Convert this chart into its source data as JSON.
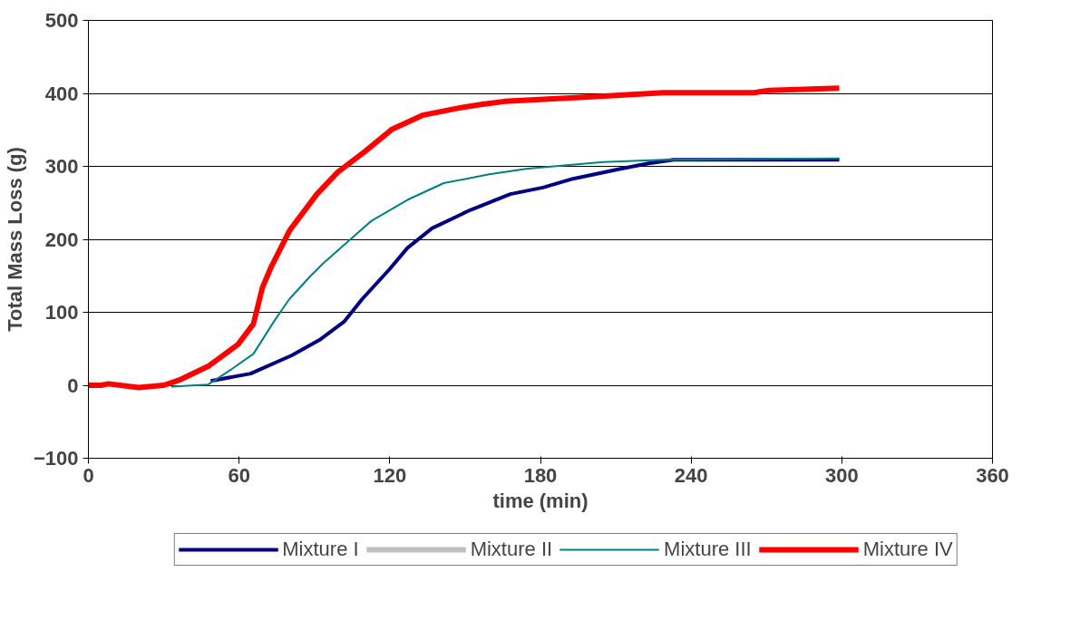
{
  "chart_data": {
    "type": "line",
    "xlabel": "time (min)",
    "ylabel": "Total Mass Loss (g)",
    "xlim": [
      0,
      360
    ],
    "xticks": [
      0,
      60,
      120,
      180,
      240,
      300,
      360
    ],
    "ylim": [
      -100,
      500
    ],
    "yticks": [
      -100,
      0,
      100,
      200,
      300,
      400,
      500
    ],
    "grid": "y",
    "legend": "bottom",
    "line_style": "solid",
    "marker": "none",
    "series": [
      {
        "name": "Mixture I",
        "color": "#000080",
        "x": [
          48.7,
          64.6,
          81,
          92,
          101.8,
          109,
          119.9,
          127,
          136.8,
          152,
          168,
          181,
          193,
          211,
          223,
          233,
          299
        ],
        "values": [
          6,
          16,
          41,
          62,
          87,
          118,
          159,
          188,
          215,
          240,
          262,
          271,
          283,
          296,
          304,
          309,
          309
        ]
      },
      {
        "name": "Mixture II",
        "color": "#c0c0c0"
      },
      {
        "name": "Mixture III",
        "color": "#008080",
        "x": [
          33,
          47.7,
          57,
          65.7,
          74,
          80,
          88.5,
          93.5,
          103,
          112.6,
          127,
          141.5,
          159.6,
          175,
          205,
          229,
          299
        ],
        "values": [
          -2,
          1,
          22,
          43,
          88,
          118,
          150,
          167,
          196,
          225,
          254,
          277,
          289,
          297,
          306,
          309,
          311
        ]
      },
      {
        "name": "Mixture IV",
        "color": "#ff0000",
        "x": [
          0,
          5,
          8,
          20,
          30,
          36.8,
          47.7,
          59.6,
          65.7,
          69.3,
          72.9,
          80.1,
          91,
          99.3,
          110,
          121,
          133,
          147.6,
          157,
          165.7,
          199,
          229,
          265,
          271,
          299
        ],
        "values": [
          0,
          0,
          2,
          -3,
          0,
          8,
          26,
          56,
          84,
          134,
          163,
          212,
          262,
          292,
          320,
          351,
          370,
          380,
          385,
          389,
          395,
          401,
          401,
          404,
          407
        ]
      }
    ]
  }
}
